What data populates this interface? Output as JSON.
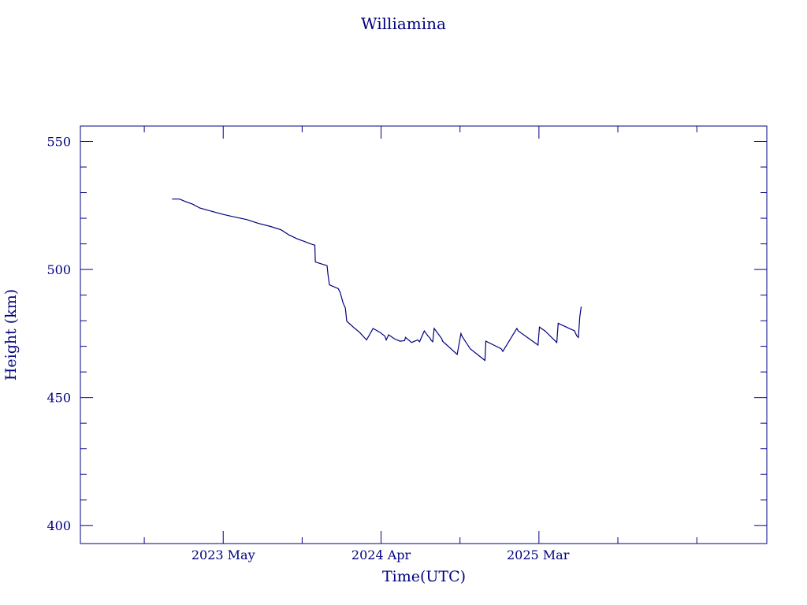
{
  "chart_data": {
    "type": "line",
    "title": "Williamina",
    "xlabel": "Time(UTC)",
    "ylabel": "Height (km)",
    "x_ticks": [
      {
        "date": "2023-05-01",
        "label": "2023 May"
      },
      {
        "date": "2024-04-01",
        "label": "2024 Apr"
      },
      {
        "date": "2025-03-01",
        "label": "2025 Mar"
      }
    ],
    "xlim": [
      "2022-07-01",
      "2026-07-01"
    ],
    "ylim": [
      393,
      556
    ],
    "y_ticks": [
      400,
      450,
      500,
      550
    ],
    "y_minor_step": 10,
    "grid": false,
    "line_color": "#000080",
    "axis_color": "#000080",
    "series": [
      {
        "x": [
          "2023-01-12",
          "2023-01-28",
          "2023-02-10",
          "2023-02-25",
          "2023-03-12",
          "2023-04-01",
          "2023-05-01",
          "2023-05-25",
          "2023-06-20",
          "2023-07-15",
          "2023-08-10",
          "2023-09-01",
          "2023-09-18",
          "2023-10-05",
          "2023-10-20",
          "2023-11-03",
          "2023-11-12",
          "2023-11-13",
          "2023-11-15",
          "2023-12-08",
          "2023-12-10",
          "2023-12-13",
          "2024-01-01",
          "2024-01-05",
          "2024-01-08",
          "2024-01-11",
          "2024-01-13",
          "2024-01-16",
          "2024-01-19",
          "2024-01-25",
          "2024-02-05",
          "2024-02-15",
          "2024-03-01",
          "2024-03-15",
          "2024-03-29",
          "2024-04-09",
          "2024-04-12",
          "2024-04-17",
          "2024-04-29",
          "2024-05-11",
          "2024-05-21",
          "2024-05-23",
          "2024-06-05",
          "2024-06-18",
          "2024-06-22",
          "2024-07-02",
          "2024-07-04",
          "2024-07-10",
          "2024-07-15",
          "2024-07-16",
          "2024-07-20",
          "2024-07-23",
          "2024-08-08",
          "2024-08-10",
          "2024-09-10",
          "2024-09-18",
          "2024-09-20",
          "2024-10-08",
          "2024-11-08",
          "2024-11-10",
          "2024-12-13",
          "2024-12-16",
          "2025-01-15",
          "2025-01-18",
          "2025-03-01",
          "2025-03-04",
          "2025-03-16",
          "2025-04-10",
          "2025-04-13",
          "2025-05-18",
          "2025-05-20",
          "2025-05-23",
          "2025-05-26",
          "2025-05-29",
          "2025-06-01"
        ],
        "y": [
          527.5,
          527.5,
          526.5,
          525.5,
          524,
          523,
          521.5,
          520.5,
          519.5,
          518,
          516.8,
          515.5,
          513.5,
          512,
          511,
          510,
          509.5,
          503,
          502.8,
          501.5,
          498,
          494,
          492.5,
          491,
          489,
          487,
          486.2,
          485,
          479.8,
          478.8,
          477,
          475.5,
          472.5,
          477,
          475.5,
          474,
          472.5,
          474.5,
          473,
          472,
          472.2,
          473.5,
          471.5,
          472.5,
          471.8,
          476,
          475.5,
          474,
          473,
          472.5,
          471.8,
          477,
          473,
          472,
          466.8,
          475,
          474,
          469,
          464.5,
          472,
          469,
          468,
          477,
          476,
          470.5,
          477.5,
          476,
          471.5,
          479,
          476,
          475,
          474,
          473.5,
          481.5,
          485.5
        ]
      }
    ]
  }
}
